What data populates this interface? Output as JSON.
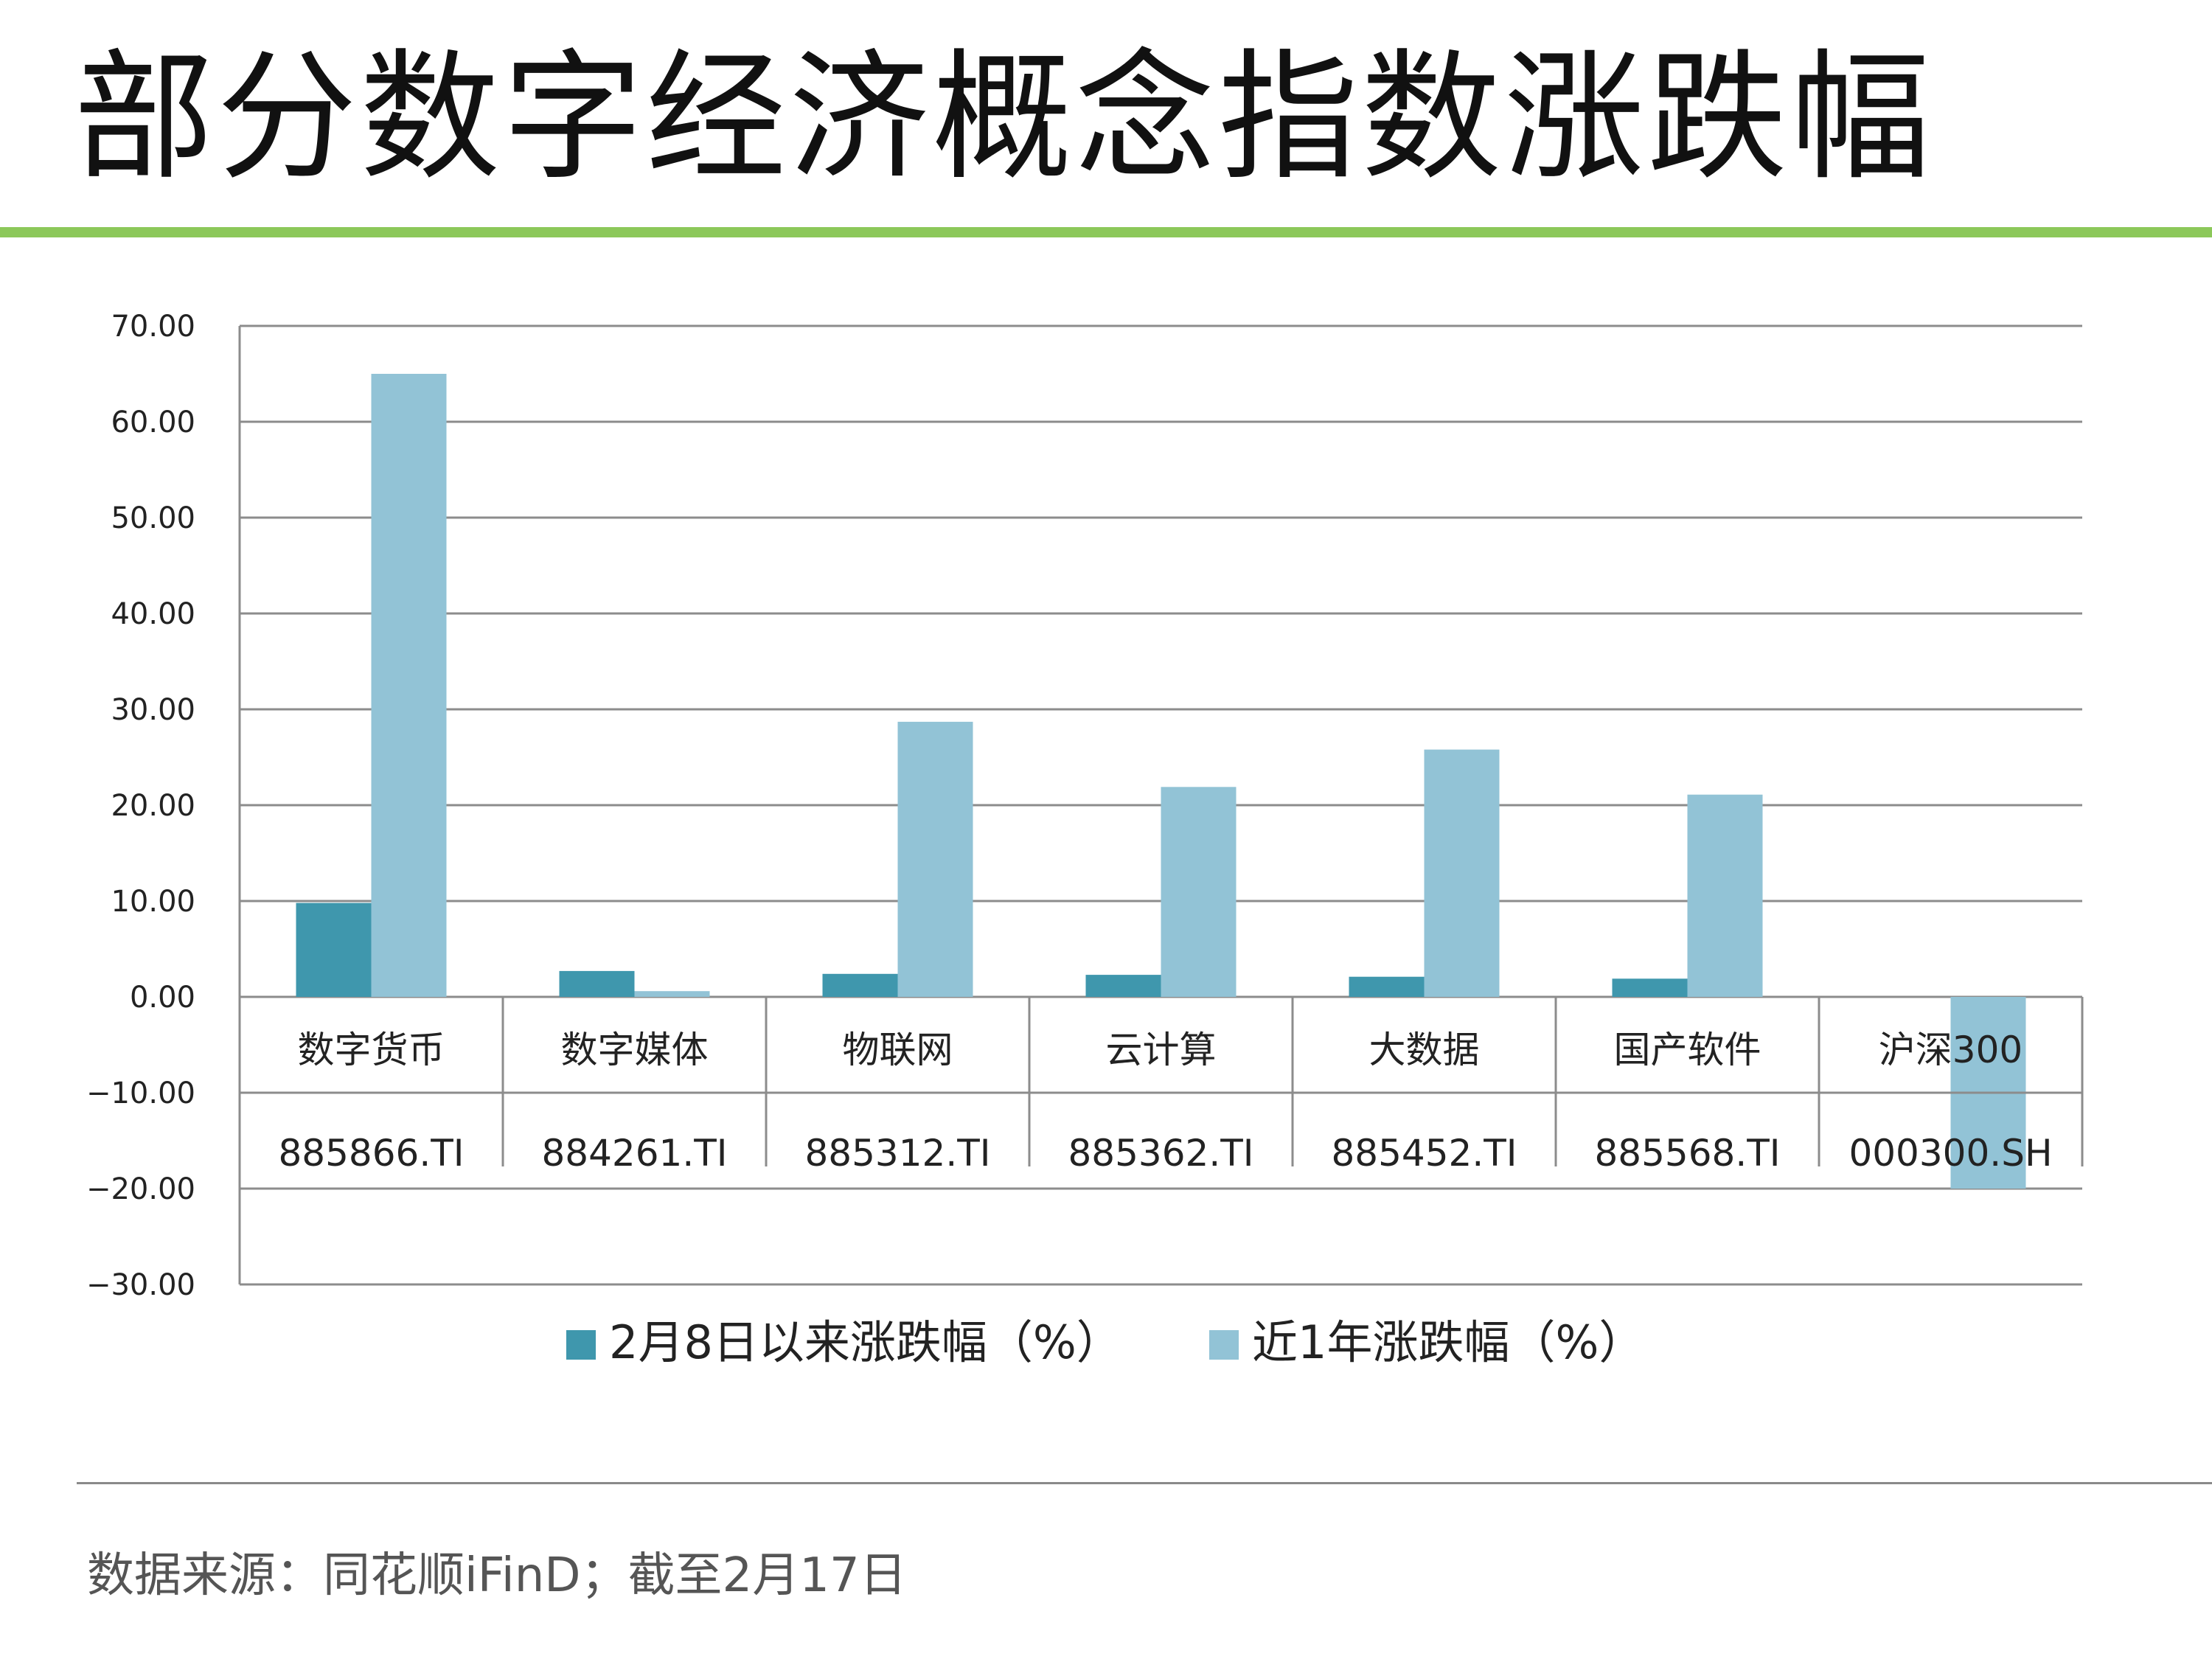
{
  "title": "部分数字经济概念指数涨跌幅",
  "source": "数据来源：同花顺iFinD；截至2月17日",
  "colors": {
    "accent_rule": "#8cc85a",
    "series1": "#3f97ad",
    "series2": "#92c3d6",
    "grid": "#8c8c8c"
  },
  "chart_data": {
    "type": "bar",
    "categories": [
      "数字货币",
      "数字媒体",
      "物联网",
      "云计算",
      "大数据",
      "国产软件",
      "沪深300"
    ],
    "codes": [
      "885866.TI",
      "884261.TI",
      "885312.TI",
      "885362.TI",
      "885452.TI",
      "885568.TI",
      "000300.SH"
    ],
    "series": [
      {
        "name": "2月8日以来涨跌幅（%）",
        "values": [
          9.8,
          2.7,
          2.4,
          2.3,
          2.1,
          1.9,
          0.0
        ]
      },
      {
        "name": "近1年涨跌幅（%）",
        "values": [
          65.0,
          0.6,
          28.7,
          21.9,
          25.8,
          21.1,
          -20.0
        ]
      }
    ],
    "yticks": [
      "70.00",
      "60.00",
      "50.00",
      "40.00",
      "30.00",
      "20.00",
      "10.00",
      "0.00",
      "−10.00",
      "−20.00",
      "−30.00"
    ],
    "ylim": [
      -30,
      70
    ],
    "grid": true,
    "legend_position": "bottom-center"
  }
}
